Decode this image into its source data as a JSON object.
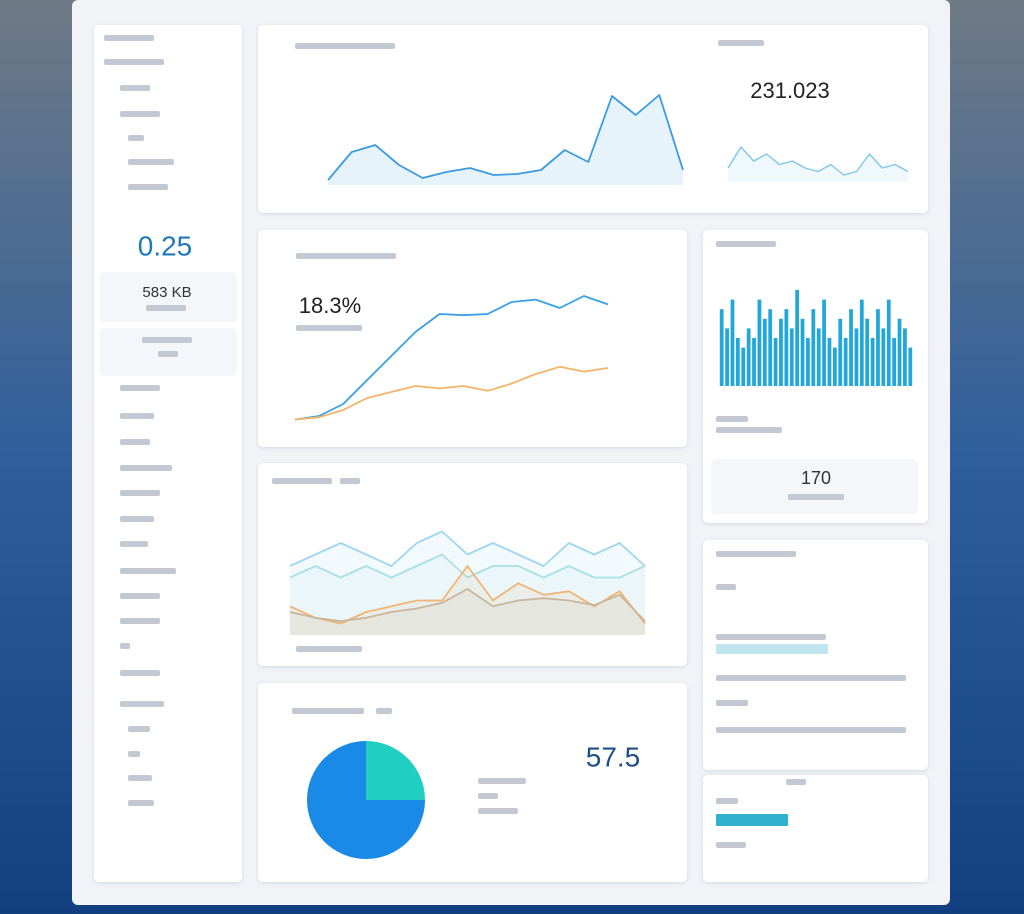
{
  "sidebar": {
    "metric": "0.25",
    "storage": "583 KB"
  },
  "traffic": {
    "type": "line",
    "color": "#3a9be0",
    "ylim": [
      0,
      10
    ],
    "values": [
      0.5,
      3.3,
      4,
      2,
      0.7,
      1.3,
      1.7,
      1,
      1.1,
      1.5,
      3.5,
      2.3,
      8.9,
      7,
      9,
      1.5
    ]
  },
  "kpi": {
    "value": "231.023",
    "type": "line",
    "color": "#7cc8ea",
    "ylim": [
      0,
      6
    ],
    "values": [
      2,
      5,
      3,
      4,
      2.5,
      3,
      2,
      1.5,
      2.5,
      1,
      1.5,
      4,
      2,
      2.5,
      1.5
    ]
  },
  "growth": {
    "value": "18.3%",
    "type": "line",
    "ylim": [
      0,
      11
    ],
    "series": [
      {
        "color": "#3aa0e4",
        "values": [
          0.2,
          0.5,
          1.5,
          3.5,
          5.5,
          7.5,
          9,
          8.9,
          9,
          10,
          10.2,
          9.5,
          10.5,
          9.8
        ]
      },
      {
        "color": "#f2b46a",
        "values": [
          0.2,
          0.4,
          1,
          2,
          2.5,
          3,
          2.8,
          3,
          2.6,
          3.2,
          4,
          4.6,
          4.2,
          4.5
        ]
      }
    ]
  },
  "activity": {
    "type": "bar",
    "color": "#22a7db",
    "ylim": [
      0,
      10
    ],
    "values": [
      8,
      6,
      9,
      5,
      4,
      6,
      5,
      9,
      7,
      8,
      5,
      7,
      8,
      6,
      10,
      7,
      5,
      8,
      6,
      9,
      5,
      4,
      7,
      5,
      8,
      6,
      9,
      7,
      5,
      8,
      6,
      9,
      5,
      7,
      6,
      4
    ]
  },
  "count": "170",
  "wave": {
    "type": "line",
    "ylim": [
      0,
      10
    ],
    "series": [
      {
        "color": "#9fd6ef",
        "values": [
          6,
          7,
          8,
          7,
          6,
          8,
          9,
          7,
          8,
          7,
          6,
          8,
          7,
          8,
          6
        ]
      },
      {
        "color": "#a9e0e4",
        "values": [
          5,
          6,
          5,
          6,
          5,
          6,
          7,
          5,
          6,
          6,
          5,
          6,
          5,
          5,
          6
        ]
      },
      {
        "color": "#f2b475",
        "values": [
          2.5,
          1.5,
          1,
          2,
          2.5,
          3,
          3,
          6,
          3,
          4.5,
          3.5,
          3.8,
          2.5,
          3.8,
          1
        ]
      },
      {
        "color": "#c9b59c",
        "values": [
          2,
          1.5,
          1.2,
          1.5,
          2,
          2.3,
          2.8,
          4,
          2.5,
          3,
          3.2,
          3,
          2.6,
          3.5,
          1.2
        ]
      }
    ]
  },
  "share": {
    "type": "pie",
    "values": [
      25,
      75
    ],
    "colors": [
      "#1fcfc0",
      "#1a8ae6"
    ]
  },
  "score": "57.5"
}
